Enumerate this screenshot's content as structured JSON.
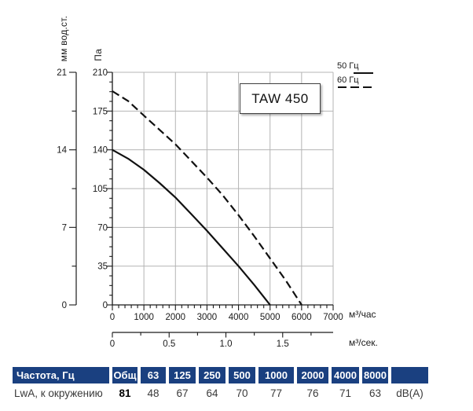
{
  "title_box": {
    "label": "TAW 450"
  },
  "legend": [
    {
      "label": "50 Гц",
      "style": "solid"
    },
    {
      "label": "60 Гц",
      "style": "dashed"
    }
  ],
  "axes": {
    "y_outer": {
      "title": "мм вод.ст.",
      "tick_labels": [
        "21",
        "14",
        "7",
        "0"
      ]
    },
    "y_inner": {
      "title": "Па",
      "tick_labels": [
        "210",
        "175",
        "140",
        "105",
        "70",
        "35",
        "0"
      ]
    },
    "x_main": {
      "tick_labels": [
        "0",
        "1000",
        "2000",
        "3000",
        "4000",
        "5000",
        "6000",
        "7000"
      ],
      "unit": "м³/час"
    },
    "x_secondary": {
      "tick_labels": [
        "0",
        "0.5",
        "1.0",
        "1.5"
      ],
      "unit": "м³/сек."
    }
  },
  "chart_data": {
    "type": "line",
    "title": "TAW 450",
    "xlabel": "м³/час",
    "x2label": "м³/сек.",
    "ylabel": "Па",
    "y2label": "мм вод.ст.",
    "xlim": [
      0,
      7000
    ],
    "ylim": [
      0,
      210
    ],
    "x2lim": [
      0,
      1.944
    ],
    "y2lim": [
      0,
      21
    ],
    "x_major": 1000,
    "x_minor": 200,
    "y_major": 35,
    "y_minor": 8.75,
    "x2_major": 0.5,
    "x2_minor": 0.25,
    "grid": true,
    "legend_position": "top-right",
    "series": [
      {
        "name": "50 Гц",
        "style": "solid",
        "points": [
          [
            0,
            140
          ],
          [
            500,
            132
          ],
          [
            1000,
            122
          ],
          [
            1500,
            110
          ],
          [
            2000,
            97
          ],
          [
            2500,
            82
          ],
          [
            3000,
            67
          ],
          [
            3500,
            51
          ],
          [
            4000,
            35
          ],
          [
            4500,
            18
          ],
          [
            5000,
            0
          ]
        ]
      },
      {
        "name": "60 Гц",
        "style": "dashed",
        "points": [
          [
            0,
            193
          ],
          [
            500,
            184
          ],
          [
            1000,
            171
          ],
          [
            1500,
            158
          ],
          [
            2000,
            145
          ],
          [
            2500,
            130
          ],
          [
            3000,
            115
          ],
          [
            3500,
            99
          ],
          [
            4000,
            81
          ],
          [
            4500,
            62
          ],
          [
            5000,
            42
          ],
          [
            5500,
            22
          ],
          [
            6000,
            0
          ]
        ]
      }
    ]
  },
  "noise_table": {
    "header": [
      "Частота, Гц",
      "Общ",
      "63",
      "125",
      "250",
      "500",
      "1000",
      "2000",
      "4000",
      "8000",
      ""
    ],
    "row": [
      "LwA, к окружению",
      "81",
      "48",
      "67",
      "64",
      "70",
      "77",
      "76",
      "71",
      "63",
      "dB(A)"
    ],
    "bold_value": "81",
    "header_bg": "#1a4080"
  },
  "colors": {
    "grid": "#b4b4b4",
    "curve": "#111111",
    "axis": "#1a1a1a",
    "table_header_bg": "#1a4080"
  }
}
